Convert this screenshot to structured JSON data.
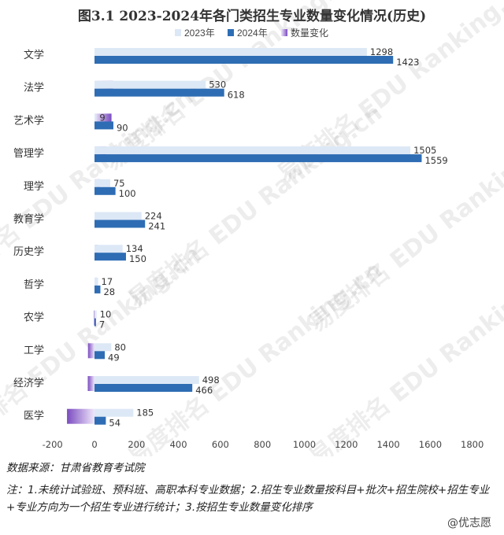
{
  "chart_data": {
    "type": "bar",
    "title": "图3.1  2023-2024年各门类招生专业数量变化情况(历史)",
    "categories": [
      "文学",
      "法学",
      "艺术学",
      "管理学",
      "理学",
      "教育学",
      "历史学",
      "哲学",
      "农学",
      "工学",
      "经济学",
      "医学"
    ],
    "series": [
      {
        "name": "2023年",
        "values": [
          1298,
          530,
          9,
          1505,
          75,
          224,
          134,
          17,
          10,
          80,
          498,
          185
        ],
        "color": "#dde8f6"
      },
      {
        "name": "2024年",
        "values": [
          1423,
          618,
          90,
          1559,
          100,
          241,
          150,
          28,
          7,
          49,
          466,
          54
        ],
        "color": "#2e6db4"
      },
      {
        "name": "数量变化",
        "values": [
          125,
          88,
          81,
          54,
          25,
          17,
          16,
          11,
          -3,
          -31,
          -32,
          -131
        ],
        "color": "#9b6fd3"
      }
    ],
    "x_ticks": [
      "-200",
      "0",
      "200",
      "400",
      "600",
      "800",
      "1000",
      "1200",
      "1400",
      "1600",
      "1800"
    ],
    "xlim": [
      -200,
      1800
    ],
    "grid": false,
    "legend_position": "top"
  },
  "footer": {
    "source": "数据来源：甘肃省教育考试院",
    "note": "注：1.未统计试验班、预科班、高职本科专业数据；2.招生专业数量按科目+批次+招生院校+招生专业+专业方向为一个招生专业进行统计；3.按招生专业数量变化排序"
  },
  "watermark": "易度排名 EDU Ranking.cn",
  "brand": "@优志愿"
}
